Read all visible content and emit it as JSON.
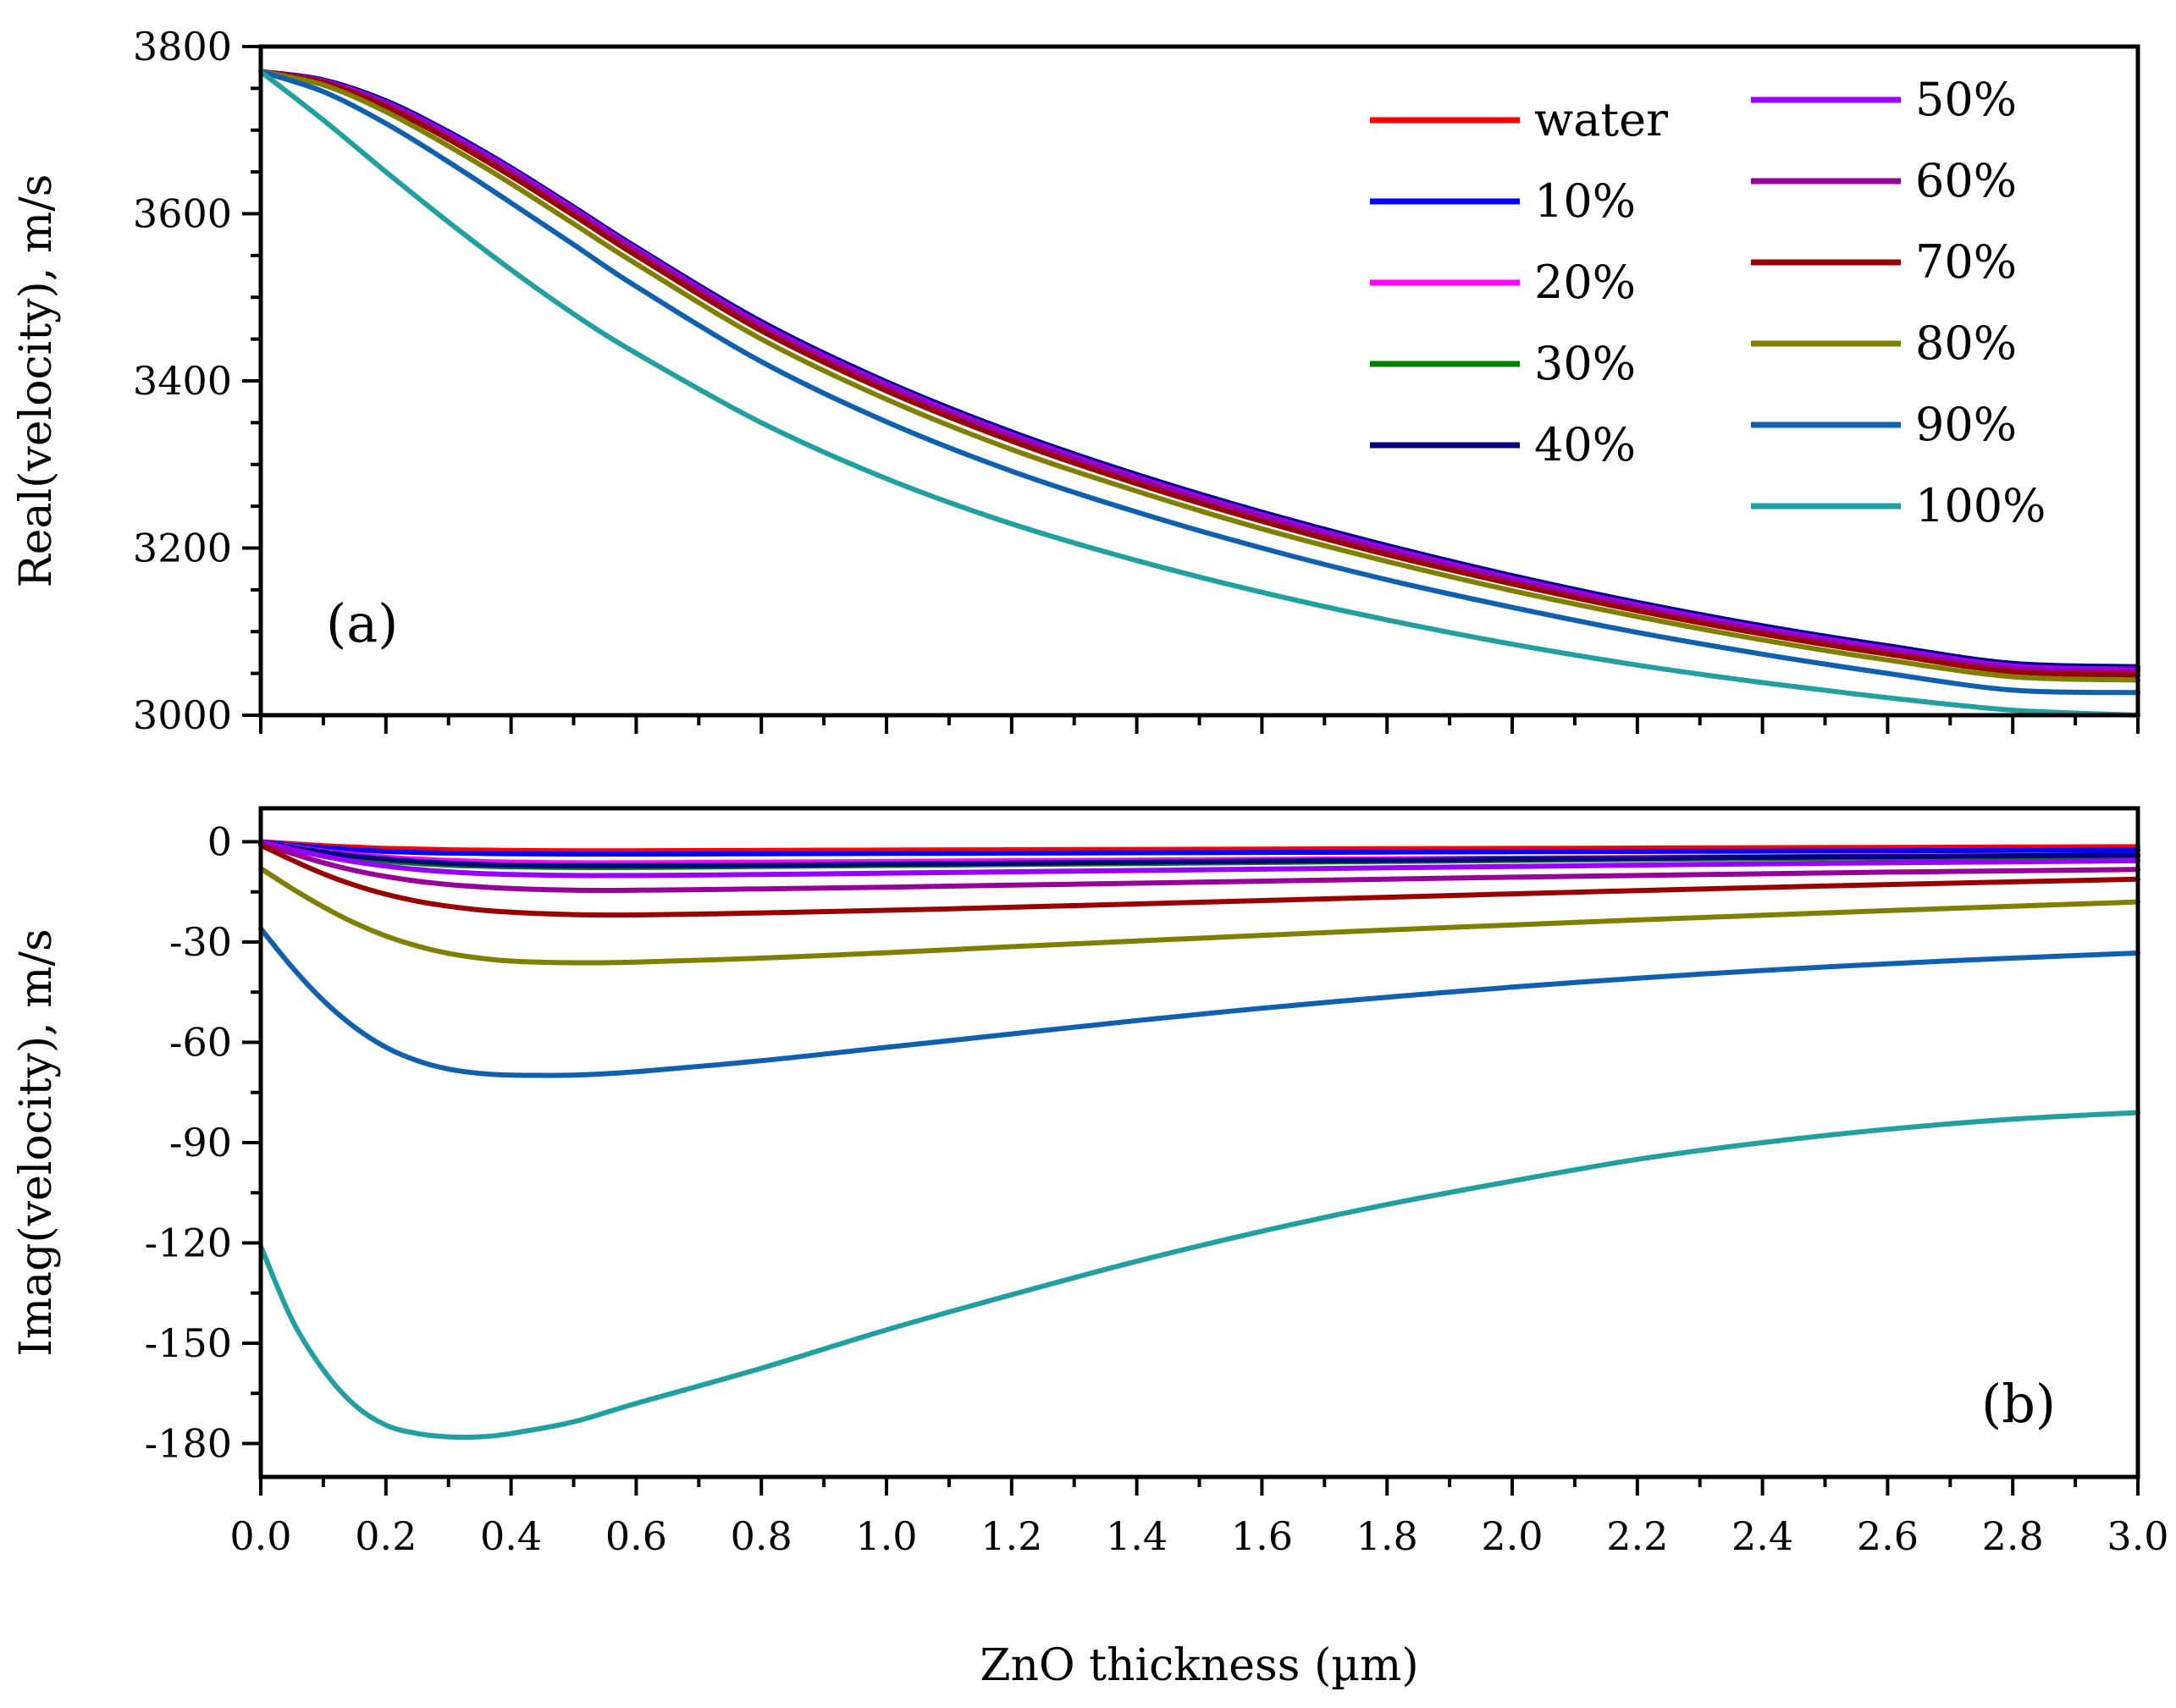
{
  "chart_data": [
    {
      "type": "line",
      "panel_label": "(a)",
      "title": "",
      "xlabel": "",
      "ylabel": "Real(velocity), m/s",
      "xlim": [
        0.0,
        3.0
      ],
      "ylim": [
        3000,
        3800
      ],
      "yticks": [
        "3000",
        "3200",
        "3400",
        "3600",
        "3800"
      ],
      "legend": {
        "placement": "top-right",
        "entries": [
          "water",
          "10%",
          "20%",
          "30%",
          "40%",
          "50%",
          "60%",
          "70%",
          "80%",
          "90%",
          "100%"
        ]
      },
      "x": [
        0.0,
        0.1,
        0.2,
        0.3,
        0.4,
        0.5,
        0.6,
        0.8,
        1.0,
        1.2,
        1.4,
        1.6,
        1.8,
        2.0,
        2.2,
        2.4,
        2.6,
        2.8,
        3.0
      ],
      "series": [
        {
          "name": "water",
          "color": "#ff0000",
          "values": [
            3770,
            3760,
            3735,
            3698,
            3655,
            3608,
            3560,
            3470,
            3398,
            3338,
            3287,
            3242,
            3202,
            3166,
            3134,
            3106,
            3082,
            3061,
            3057
          ]
        },
        {
          "name": "10%",
          "color": "#0000ff",
          "values": [
            3770,
            3760,
            3735,
            3698,
            3655,
            3608,
            3560,
            3470,
            3398,
            3338,
            3287,
            3242,
            3202,
            3166,
            3134,
            3106,
            3082,
            3061,
            3057
          ]
        },
        {
          "name": "20%",
          "color": "#ff00ff",
          "values": [
            3770,
            3759,
            3734,
            3697,
            3654,
            3607,
            3559,
            3469,
            3397,
            3337,
            3286,
            3241,
            3201,
            3165,
            3133,
            3105,
            3081,
            3060,
            3056
          ]
        },
        {
          "name": "30%",
          "color": "#008000",
          "values": [
            3770,
            3759,
            3733,
            3696,
            3653,
            3606,
            3558,
            3468,
            3396,
            3336,
            3285,
            3240,
            3200,
            3164,
            3132,
            3104,
            3080,
            3059,
            3055
          ]
        },
        {
          "name": "40%",
          "color": "#000080",
          "values": [
            3770,
            3760,
            3735,
            3698,
            3655,
            3608,
            3560,
            3471,
            3399,
            3339,
            3288,
            3243,
            3203,
            3167,
            3135,
            3107,
            3083,
            3062,
            3058
          ]
        },
        {
          "name": "50%",
          "color": "#9900ff",
          "values": [
            3770,
            3759,
            3733,
            3696,
            3653,
            3606,
            3558,
            3468,
            3396,
            3336,
            3285,
            3240,
            3200,
            3164,
            3132,
            3104,
            3080,
            3059,
            3055
          ]
        },
        {
          "name": "60%",
          "color": "#990099",
          "values": [
            3770,
            3758,
            3731,
            3693,
            3650,
            3603,
            3555,
            3465,
            3393,
            3333,
            3282,
            3237,
            3197,
            3161,
            3129,
            3101,
            3077,
            3056,
            3052
          ]
        },
        {
          "name": "70%",
          "color": "#990000",
          "values": [
            3770,
            3757,
            3728,
            3689,
            3645,
            3598,
            3550,
            3460,
            3388,
            3328,
            3277,
            3232,
            3192,
            3157,
            3125,
            3097,
            3073,
            3052,
            3048
          ]
        },
        {
          "name": "80%",
          "color": "#808000",
          "values": [
            3770,
            3754,
            3722,
            3681,
            3636,
            3588,
            3540,
            3450,
            3378,
            3318,
            3268,
            3223,
            3184,
            3149,
            3118,
            3090,
            3066,
            3046,
            3042
          ]
        },
        {
          "name": "90%",
          "color": "#1060b0",
          "values": [
            3770,
            3746,
            3708,
            3662,
            3613,
            3563,
            3513,
            3423,
            3351,
            3292,
            3243,
            3200,
            3162,
            3129,
            3099,
            3073,
            3050,
            3030,
            3027
          ]
        },
        {
          "name": "100%",
          "color": "#20a0a0",
          "values": [
            3770,
            3712,
            3650,
            3590,
            3533,
            3480,
            3433,
            3350,
            3283,
            3229,
            3185,
            3147,
            3114,
            3085,
            3060,
            3039,
            3021,
            3006,
            3000
          ]
        }
      ]
    },
    {
      "type": "line",
      "panel_label": "(b)",
      "title": "",
      "xlabel": "ZnO thickness (µm)",
      "ylabel": "Imag(velocity), m/s",
      "xlim": [
        0.0,
        3.0
      ],
      "ylim": [
        -190,
        10
      ],
      "yticks": [
        "0",
        "-30",
        "-60",
        "-90",
        "-120",
        "-150",
        "-180"
      ],
      "xticks": [
        "0.0",
        "0.2",
        "0.4",
        "0.6",
        "0.8",
        "1.0",
        "1.2",
        "1.4",
        "1.6",
        "1.8",
        "2.0",
        "2.2",
        "2.4",
        "2.6",
        "2.8",
        "3.0"
      ],
      "x": [
        0.0,
        0.05,
        0.1,
        0.15,
        0.2,
        0.25,
        0.3,
        0.35,
        0.4,
        0.5,
        0.6,
        0.8,
        1.0,
        1.2,
        1.4,
        1.6,
        1.8,
        2.0,
        2.2,
        2.4,
        2.6,
        2.8,
        3.0
      ],
      "series": [
        {
          "name": "water",
          "color": "#ff0000",
          "values": [
            0,
            -0.6,
            -1.2,
            -1.6,
            -2.0,
            -2.2,
            -2.4,
            -2.5,
            -2.6,
            -2.7,
            -2.7,
            -2.6,
            -2.5,
            -2.4,
            -2.3,
            -2.2,
            -2.1,
            -2.0,
            -1.9,
            -1.8,
            -1.7,
            -1.6,
            -1.5
          ]
        },
        {
          "name": "10%",
          "color": "#0000ff",
          "values": [
            0,
            -1.0,
            -1.8,
            -2.4,
            -2.9,
            -3.2,
            -3.4,
            -3.5,
            -3.6,
            -3.7,
            -3.7,
            -3.6,
            -3.5,
            -3.4,
            -3.3,
            -3.2,
            -3.1,
            -3.0,
            -2.9,
            -2.8,
            -2.7,
            -2.6,
            -2.5
          ]
        },
        {
          "name": "20%",
          "color": "#ff00ff",
          "values": [
            0,
            -1.5,
            -2.8,
            -3.8,
            -4.6,
            -5.2,
            -5.6,
            -5.9,
            -6.1,
            -6.3,
            -6.3,
            -6.1,
            -5.9,
            -5.7,
            -5.5,
            -5.3,
            -5.1,
            -4.9,
            -4.7,
            -4.5,
            -4.3,
            -4.2,
            -4.0
          ]
        },
        {
          "name": "30%",
          "color": "#008000",
          "values": [
            0,
            -1.9,
            -3.5,
            -4.8,
            -5.8,
            -6.5,
            -7.0,
            -7.3,
            -7.5,
            -7.7,
            -7.7,
            -7.4,
            -7.1,
            -6.8,
            -6.5,
            -6.2,
            -5.9,
            -5.6,
            -5.3,
            -5.0,
            -4.8,
            -4.6,
            -4.4
          ]
        },
        {
          "name": "40%",
          "color": "#000080",
          "values": [
            0,
            -1.7,
            -3.1,
            -4.3,
            -5.2,
            -5.9,
            -6.4,
            -6.8,
            -7.0,
            -7.2,
            -7.2,
            -7.0,
            -6.7,
            -6.4,
            -6.1,
            -5.8,
            -5.5,
            -5.2,
            -4.9,
            -4.6,
            -4.4,
            -4.2,
            -4.0
          ]
        },
        {
          "name": "50%",
          "color": "#9900ff",
          "values": [
            0,
            -2.3,
            -4.3,
            -6.0,
            -7.3,
            -8.3,
            -9.0,
            -9.5,
            -9.8,
            -10.1,
            -10.1,
            -9.8,
            -9.4,
            -9.0,
            -8.6,
            -8.2,
            -7.8,
            -7.4,
            -7.0,
            -6.6,
            -6.3,
            -6.0,
            -5.7
          ]
        },
        {
          "name": "60%",
          "color": "#990099",
          "values": [
            -0.5,
            -3.5,
            -6.3,
            -8.6,
            -10.4,
            -11.8,
            -12.8,
            -13.5,
            -14.0,
            -14.5,
            -14.5,
            -14.1,
            -13.6,
            -13.0,
            -12.4,
            -11.8,
            -11.2,
            -10.6,
            -10.1,
            -9.6,
            -9.1,
            -8.7,
            -8.3
          ]
        },
        {
          "name": "70%",
          "color": "#990000",
          "values": [
            -1.0,
            -5.5,
            -9.6,
            -13.0,
            -15.7,
            -17.8,
            -19.3,
            -20.4,
            -21.1,
            -21.8,
            -21.9,
            -21.3,
            -20.5,
            -19.6,
            -18.6,
            -17.6,
            -16.6,
            -15.6,
            -14.6,
            -13.7,
            -12.8,
            -12.0,
            -11.2
          ]
        },
        {
          "name": "80%",
          "color": "#808000",
          "values": [
            -8.0,
            -14.0,
            -19.5,
            -24.3,
            -28.2,
            -31.2,
            -33.4,
            -34.8,
            -35.7,
            -36.2,
            -36.0,
            -34.8,
            -33.2,
            -31.4,
            -29.7,
            -28.0,
            -26.4,
            -24.9,
            -23.4,
            -22.0,
            -20.6,
            -19.3,
            -18.0
          ]
        },
        {
          "name": "90%",
          "color": "#1060b0",
          "values": [
            -26.0,
            -37.5,
            -47.5,
            -55.5,
            -61.5,
            -65.5,
            -68.0,
            -69.3,
            -69.8,
            -69.8,
            -68.8,
            -65.5,
            -61.5,
            -57.5,
            -53.5,
            -49.8,
            -46.5,
            -43.5,
            -40.8,
            -38.5,
            -36.5,
            -34.8,
            -33.3
          ]
        },
        {
          "name": "100%",
          "color": "#20a0a0",
          "values": [
            -121.0,
            -143.0,
            -158.0,
            -168.5,
            -174.5,
            -177.0,
            -178.0,
            -178.0,
            -177.0,
            -173.5,
            -168.0,
            -157.5,
            -146.0,
            -135.5,
            -125.5,
            -116.5,
            -108.5,
            -101.5,
            -95.0,
            -90.0,
            -86.0,
            -83.0,
            -81.0
          ]
        }
      ]
    }
  ]
}
